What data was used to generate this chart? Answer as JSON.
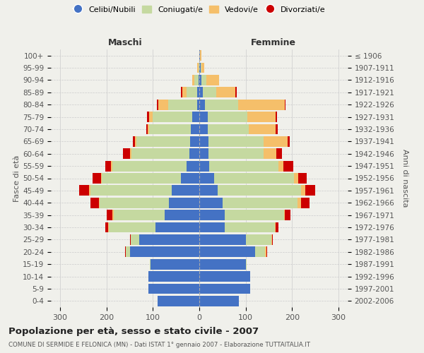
{
  "age_groups": [
    "0-4",
    "5-9",
    "10-14",
    "15-19",
    "20-24",
    "25-29",
    "30-34",
    "35-39",
    "40-44",
    "45-49",
    "50-54",
    "55-59",
    "60-64",
    "65-69",
    "70-74",
    "75-79",
    "80-84",
    "85-89",
    "90-94",
    "95-99",
    "100+"
  ],
  "birth_years": [
    "2002-2006",
    "1997-2001",
    "1992-1996",
    "1987-1991",
    "1982-1986",
    "1977-1981",
    "1972-1976",
    "1967-1971",
    "1962-1966",
    "1957-1961",
    "1952-1956",
    "1947-1951",
    "1942-1946",
    "1937-1941",
    "1932-1936",
    "1927-1931",
    "1922-1926",
    "1917-1921",
    "1912-1916",
    "1907-1911",
    "≤ 1906"
  ],
  "males": {
    "celibe": [
      90,
      110,
      110,
      105,
      150,
      130,
      95,
      75,
      65,
      60,
      40,
      28,
      22,
      20,
      18,
      15,
      5,
      5,
      2,
      0,
      0
    ],
    "coniugato": [
      0,
      0,
      0,
      2,
      8,
      18,
      100,
      110,
      150,
      175,
      170,
      160,
      125,
      115,
      90,
      85,
      62,
      22,
      8,
      2,
      0
    ],
    "vedovo": [
      0,
      0,
      0,
      0,
      0,
      0,
      2,
      2,
      2,
      2,
      2,
      2,
      2,
      4,
      4,
      8,
      22,
      10,
      5,
      2,
      0
    ],
    "divorziato": [
      0,
      0,
      0,
      0,
      2,
      2,
      5,
      12,
      18,
      22,
      18,
      12,
      15,
      5,
      2,
      5,
      2,
      2,
      0,
      0,
      0
    ]
  },
  "females": {
    "nubile": [
      85,
      110,
      110,
      100,
      120,
      100,
      55,
      55,
      50,
      40,
      32,
      22,
      20,
      20,
      18,
      18,
      12,
      8,
      5,
      3,
      2
    ],
    "coniugata": [
      0,
      0,
      0,
      2,
      22,
      55,
      108,
      128,
      162,
      180,
      172,
      148,
      118,
      118,
      88,
      85,
      72,
      28,
      10,
      2,
      0
    ],
    "vedova": [
      0,
      0,
      0,
      0,
      2,
      2,
      2,
      2,
      8,
      8,
      10,
      12,
      28,
      52,
      58,
      62,
      100,
      42,
      28,
      5,
      2
    ],
    "divorziata": [
      0,
      0,
      0,
      0,
      2,
      2,
      5,
      12,
      18,
      22,
      18,
      20,
      12,
      5,
      5,
      2,
      2,
      2,
      0,
      0,
      0
    ]
  },
  "color_celibe": "#4472c4",
  "color_coniugato": "#c5d9a0",
  "color_vedovo": "#f5bf6a",
  "color_divorziato": "#cc0000",
  "title": "Popolazione per età, sesso e stato civile - 2007",
  "subtitle": "COMUNE DI SERMIDE E FELONICA (MN) - Dati ISTAT 1° gennaio 2007 - Elaborazione TUTTAITALIA.IT",
  "xlabel_maschi": "Maschi",
  "xlabel_femmine": "Femmine",
  "ylabel_left": "Fasce di età",
  "ylabel_right": "Anni di nascita",
  "xlim": 320,
  "bg_color": "#f0f0eb",
  "grid_color": "#cccccc"
}
